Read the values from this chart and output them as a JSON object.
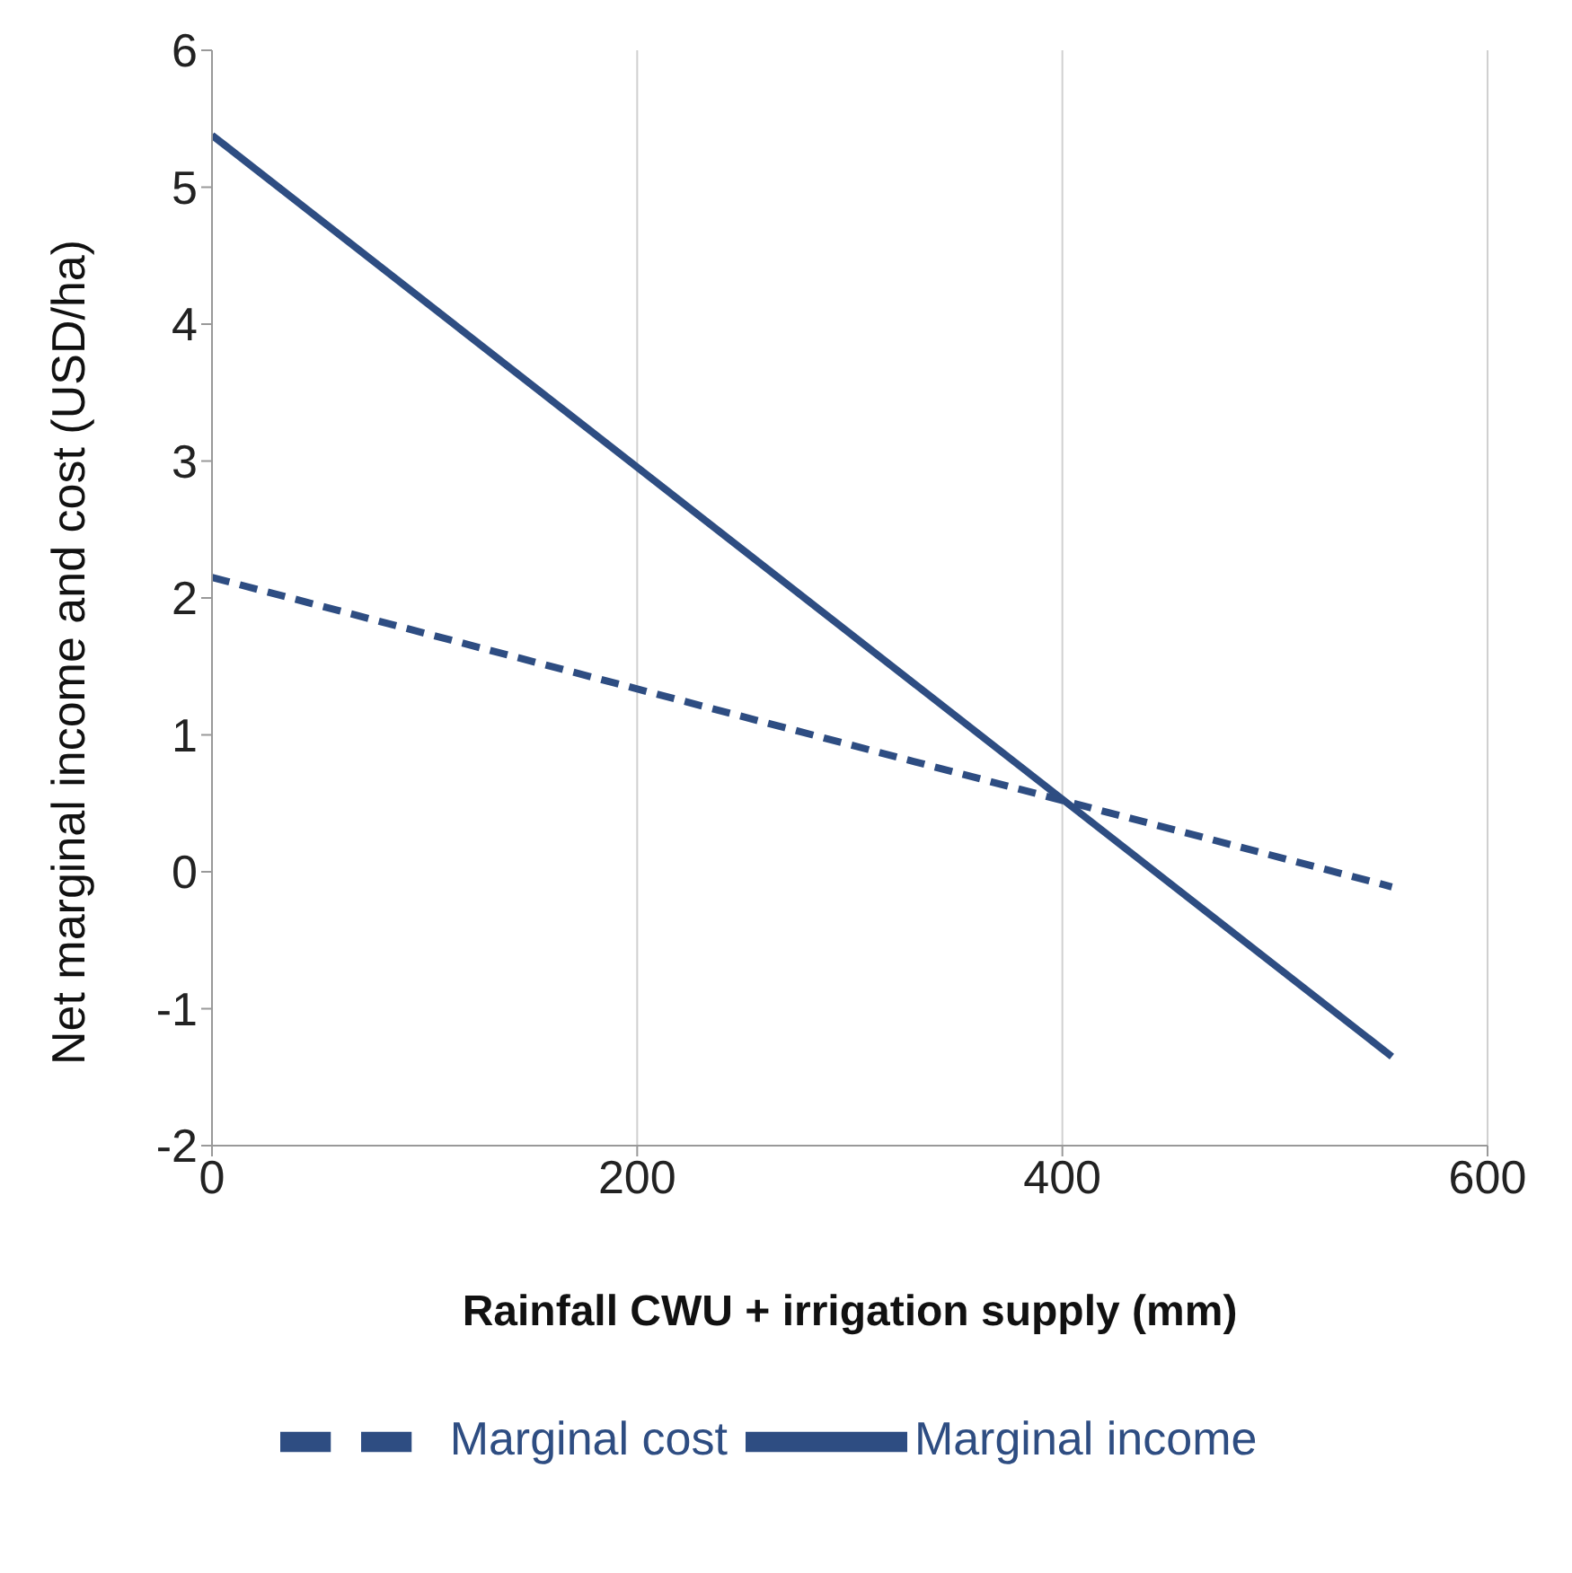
{
  "chart_data": {
    "type": "line",
    "xlabel": "Rainfall CWU + irrigation  supply (mm)",
    "ylabel": "Net marginal income and cost (USD/ha)",
    "x": [
      0,
      555
    ],
    "series": [
      {
        "name": "Marginal income",
        "color": "#2e4d82",
        "values": [
          5.38,
          -1.35
        ],
        "line_style": "solid"
      },
      {
        "name": "Marginal cost",
        "color": "#2e4d82",
        "values": [
          2.15,
          -0.11
        ],
        "line_style": "dashed"
      }
    ],
    "xlim": [
      0,
      600
    ],
    "xticks": [
      0,
      200,
      400,
      600
    ],
    "ylim": [
      -2,
      6
    ],
    "yticks": [
      -2,
      -1,
      0,
      1,
      2,
      3,
      4,
      5,
      6
    ],
    "grid": "x",
    "legend": "bottom",
    "marker": "none"
  }
}
